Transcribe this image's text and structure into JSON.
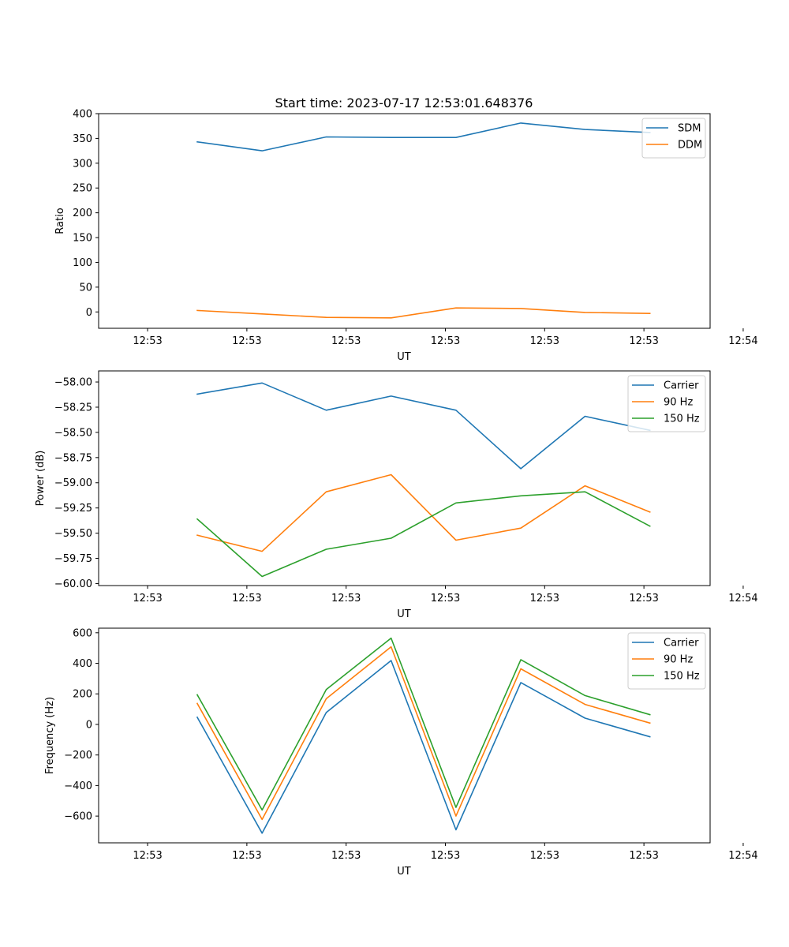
{
  "chart_data": [
    {
      "type": "line",
      "title": "Start time: 2023-07-17 12:53:01.648376",
      "xlabel": "UT",
      "ylabel": "Ratio",
      "xlim": [
        -0.74,
        8.5
      ],
      "ylim": [
        -33,
        400
      ],
      "x_tick_values": [
        0,
        1.5,
        3,
        4.5,
        6,
        7.5,
        9
      ],
      "x_tick_labels": [
        "12:53",
        "12:53",
        "12:53",
        "12:53",
        "12:53",
        "12:53",
        "12:54"
      ],
      "y_tick_values": [
        0,
        50,
        100,
        150,
        200,
        250,
        300,
        350,
        400
      ],
      "y_tick_labels": [
        "0",
        "50",
        "100",
        "150",
        "200",
        "250",
        "300",
        "350",
        "400"
      ],
      "legend_position": "top-right",
      "x": [
        0.75,
        1.73,
        2.7,
        3.68,
        4.66,
        5.64,
        6.61,
        7.59
      ],
      "series": [
        {
          "name": "SDM",
          "color": "#1f77b4",
          "values": [
            343,
            325,
            353,
            352,
            352,
            381,
            368,
            362
          ]
        },
        {
          "name": "DDM",
          "color": "#ff7f0e",
          "values": [
            3,
            -4,
            -11,
            -12,
            8,
            7,
            -1,
            -3
          ]
        }
      ]
    },
    {
      "type": "line",
      "title": "",
      "xlabel": "UT",
      "ylabel": "Power (dB)",
      "xlim": [
        -0.74,
        8.5
      ],
      "ylim": [
        -60.02,
        -57.89
      ],
      "x_tick_values": [
        0,
        1.5,
        3,
        4.5,
        6,
        7.5,
        9
      ],
      "x_tick_labels": [
        "12:53",
        "12:53",
        "12:53",
        "12:53",
        "12:53",
        "12:53",
        "12:54"
      ],
      "y_tick_values": [
        -58.0,
        -58.25,
        -58.5,
        -58.75,
        -59.0,
        -59.25,
        -59.5,
        -59.75,
        -60.0
      ],
      "y_tick_labels": [
        "−58.00",
        "−58.25",
        "−58.50",
        "−58.75",
        "−59.00",
        "−59.25",
        "−59.50",
        "−59.75",
        "−60.00"
      ],
      "legend_position": "top-right",
      "x": [
        0.75,
        1.73,
        2.7,
        3.68,
        4.66,
        5.64,
        6.61,
        7.59
      ],
      "series": [
        {
          "name": "Carrier",
          "color": "#1f77b4",
          "values": [
            -58.12,
            -58.01,
            -58.28,
            -58.14,
            -58.28,
            -58.86,
            -58.34,
            -58.48
          ]
        },
        {
          "name": "90 Hz",
          "color": "#ff7f0e",
          "values": [
            -59.52,
            -59.68,
            -59.09,
            -58.92,
            -59.57,
            -59.45,
            -59.03,
            -59.29
          ]
        },
        {
          "name": "150 Hz",
          "color": "#2ca02c",
          "values": [
            -59.36,
            -59.93,
            -59.66,
            -59.55,
            -59.2,
            -59.13,
            -59.09,
            -59.43
          ]
        }
      ]
    },
    {
      "type": "line",
      "title": "",
      "xlabel": "UT",
      "ylabel": "Frequency (Hz)",
      "xlim": [
        -0.74,
        8.5
      ],
      "ylim": [
        -775,
        630
      ],
      "x_tick_values": [
        0,
        1.5,
        3,
        4.5,
        6,
        7.5,
        9
      ],
      "x_tick_labels": [
        "12:53",
        "12:53",
        "12:53",
        "12:53",
        "12:53",
        "12:53",
        "12:54"
      ],
      "y_tick_values": [
        -600,
        -400,
        -200,
        0,
        200,
        400,
        600
      ],
      "y_tick_labels": [
        "−600",
        "−400",
        "−200",
        "0",
        "200",
        "400",
        "600"
      ],
      "legend_position": "top-right",
      "x": [
        0.75,
        1.73,
        2.7,
        3.68,
        4.66,
        5.64,
        6.61,
        7.59
      ],
      "series": [
        {
          "name": "Carrier",
          "color": "#1f77b4",
          "values": [
            47,
            -712,
            78,
            418,
            -690,
            274,
            41,
            -81
          ]
        },
        {
          "name": "90 Hz",
          "color": "#ff7f0e",
          "values": [
            137,
            -622,
            168,
            508,
            -600,
            364,
            131,
            9
          ]
        },
        {
          "name": "150 Hz",
          "color": "#2ca02c",
          "values": [
            194,
            -560,
            228,
            565,
            -543,
            424,
            189,
            64
          ]
        }
      ]
    }
  ]
}
